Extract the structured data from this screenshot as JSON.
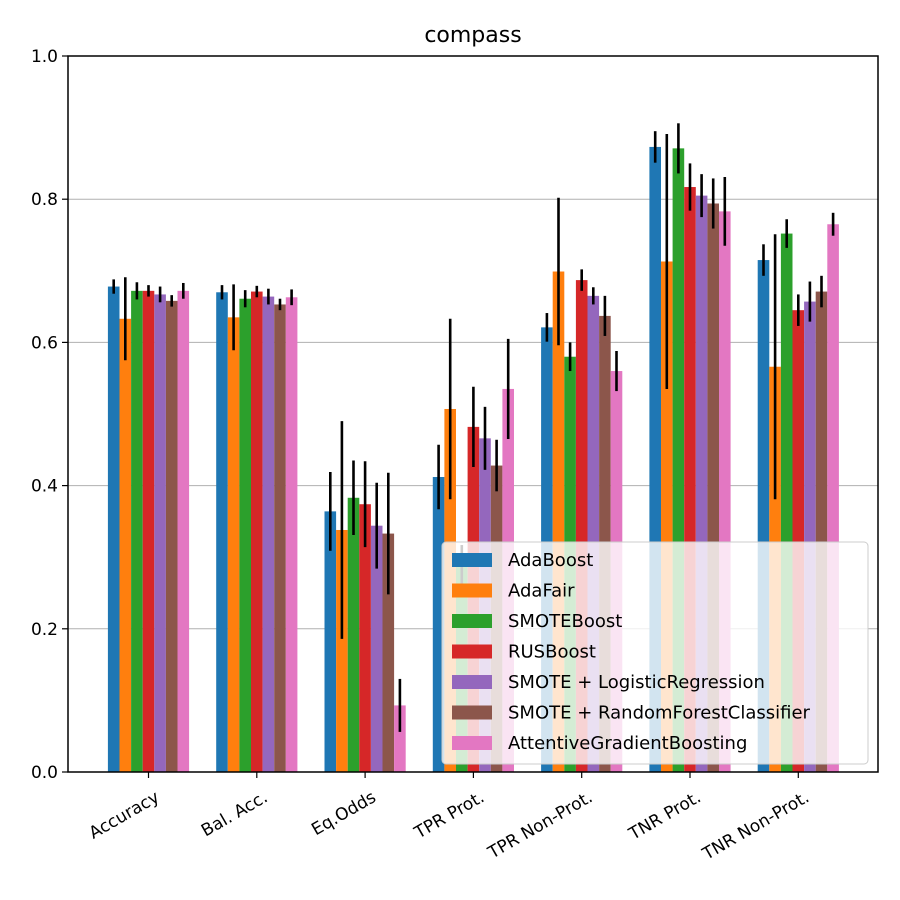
{
  "chart_data": {
    "type": "bar",
    "title": "compass",
    "xlabel": "",
    "ylabel": "",
    "ylim": [
      0.0,
      1.0
    ],
    "yticks": [
      "0.0",
      "0.2",
      "0.4",
      "0.6",
      "0.8",
      "1.0"
    ],
    "grid": "y-axis horizontal lines",
    "legend_position": "lower-right",
    "categories": [
      "Accuracy",
      "Bal. Acc.",
      "Eq.Odds",
      "TPR Prot.",
      "TPR Non-Prot.",
      "TNR Prot.",
      "TNR Non-Prot."
    ],
    "series": [
      {
        "name": "AdaBoost",
        "color": "#1f77b4",
        "values": [
          0.678,
          0.67,
          0.364,
          0.412,
          0.621,
          0.873,
          0.715
        ],
        "errors": [
          0.01,
          0.01,
          0.055,
          0.045,
          0.02,
          0.022,
          0.022
        ]
      },
      {
        "name": "AdaFair",
        "color": "#ff7f0e",
        "values": [
          0.633,
          0.635,
          0.338,
          0.507,
          0.699,
          0.713,
          0.566
        ],
        "errors": [
          0.058,
          0.046,
          0.152,
          0.126,
          0.103,
          0.178,
          0.185
        ]
      },
      {
        "name": "SMOTEBoost",
        "color": "#2ca02c",
        "values": [
          0.672,
          0.661,
          0.383,
          0.287,
          0.58,
          0.871,
          0.752
        ],
        "errors": [
          0.012,
          0.012,
          0.052,
          0.03,
          0.02,
          0.035,
          0.02
        ]
      },
      {
        "name": "RUSBoost",
        "color": "#d62728",
        "values": [
          0.672,
          0.671,
          0.374,
          0.482,
          0.687,
          0.817,
          0.645
        ],
        "errors": [
          0.008,
          0.008,
          0.06,
          0.056,
          0.015,
          0.033,
          0.022
        ]
      },
      {
        "name": "SMOTE + LogisticRegression",
        "color": "#9467bd",
        "values": [
          0.667,
          0.664,
          0.344,
          0.466,
          0.665,
          0.805,
          0.657
        ],
        "errors": [
          0.011,
          0.011,
          0.06,
          0.044,
          0.012,
          0.03,
          0.028
        ]
      },
      {
        "name": "SMOTE + RandomForestClassifier",
        "color": "#8c564b",
        "values": [
          0.658,
          0.653,
          0.333,
          0.428,
          0.637,
          0.794,
          0.671
        ],
        "errors": [
          0.008,
          0.008,
          0.085,
          0.036,
          0.028,
          0.035,
          0.022
        ]
      },
      {
        "name": "AttentiveGradientBoosting",
        "color": "#e377c2",
        "values": [
          0.672,
          0.663,
          0.093,
          0.535,
          0.56,
          0.783,
          0.765
        ],
        "errors": [
          0.011,
          0.011,
          0.037,
          0.07,
          0.028,
          0.048,
          0.016
        ]
      }
    ]
  }
}
